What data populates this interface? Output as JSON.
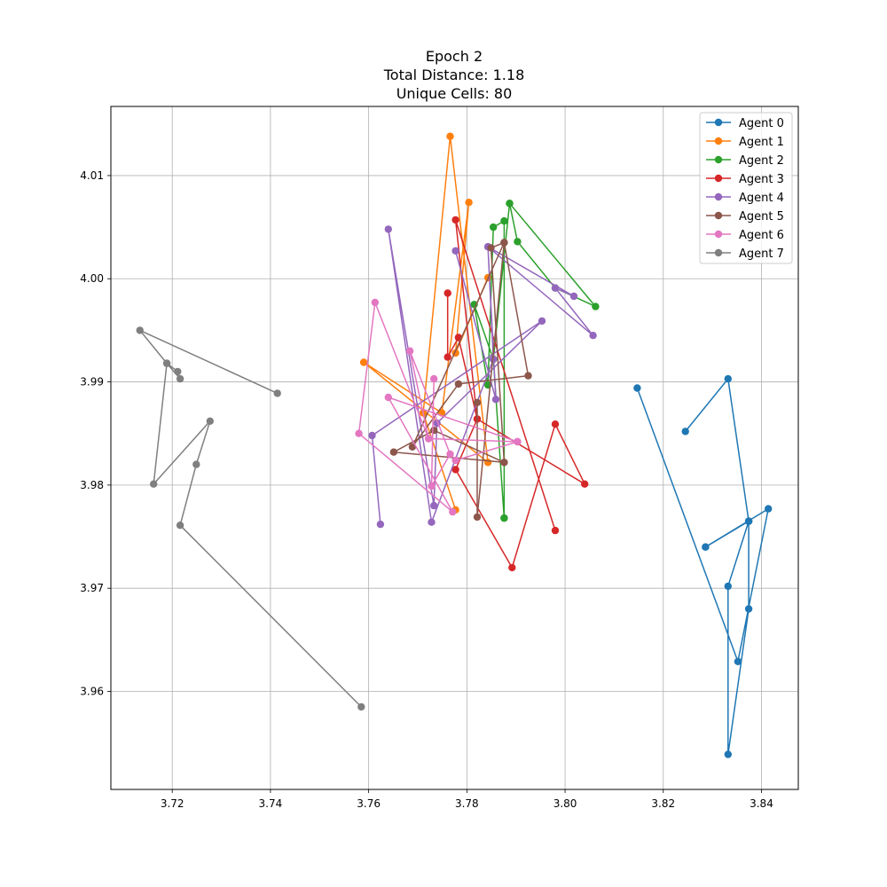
{
  "chart_data": {
    "type": "line",
    "title_lines": [
      "Epoch 2",
      "Total Distance: 1.18",
      "Unique Cells: 80"
    ],
    "xlabel": "",
    "ylabel": "",
    "xlim": [
      3.7075,
      3.8475
    ],
    "ylim": [
      3.9505,
      4.0167
    ],
    "x_ticks": [
      3.72,
      3.74,
      3.76,
      3.78,
      3.8,
      3.82,
      3.84
    ],
    "x_tick_labels": [
      "3.72",
      "3.74",
      "3.76",
      "3.78",
      "3.80",
      "3.82",
      "3.84"
    ],
    "y_ticks": [
      3.96,
      3.97,
      3.98,
      3.99,
      4.0,
      4.01
    ],
    "y_tick_labels": [
      "3.96",
      "3.97",
      "3.98",
      "3.99",
      "4.00",
      "4.01"
    ],
    "grid": true,
    "legend_position": "top-right",
    "series": [
      {
        "name": "Agent 0",
        "color": "#1f77b4",
        "points": [
          [
            3.8147,
            3.9894
          ],
          [
            3.8352,
            3.9629
          ],
          [
            3.8414,
            3.9777
          ],
          [
            3.8286,
            3.974
          ],
          [
            3.8374,
            3.9765
          ],
          [
            3.8374,
            3.968
          ],
          [
            3.8332,
            3.9539
          ],
          [
            3.8332,
            3.9702
          ],
          [
            3.8374,
            3.9765
          ],
          [
            3.8286,
            3.974
          ],
          [
            3.8374,
            3.9765
          ],
          [
            3.8332,
            3.9903
          ],
          [
            3.8245,
            3.9852
          ]
        ]
      },
      {
        "name": "Agent 1",
        "color": "#ff7f0e",
        "points": [
          [
            3.7777,
            3.9776
          ],
          [
            3.7711,
            3.987
          ],
          [
            3.7766,
            4.0138
          ],
          [
            3.7843,
            3.9822
          ],
          [
            3.759,
            3.9919
          ],
          [
            3.7749,
            3.987
          ],
          [
            3.7804,
            4.0074
          ],
          [
            3.7777,
            3.9928
          ],
          [
            3.7843,
            4.0001
          ]
        ]
      },
      {
        "name": "Agent 2",
        "color": "#2ca02c",
        "points": [
          [
            3.7876,
            3.9768
          ],
          [
            3.7876,
            4.0056
          ],
          [
            3.7854,
            4.005
          ],
          [
            3.7843,
            3.9897
          ],
          [
            3.7815,
            3.9975
          ],
          [
            3.7854,
            3.9922
          ],
          [
            3.7887,
            4.0073
          ],
          [
            3.7903,
            4.0036
          ],
          [
            3.798,
            3.9991
          ],
          [
            3.8062,
            3.9973
          ],
          [
            3.7887,
            4.0073
          ],
          [
            3.7854,
            3.9922
          ],
          [
            3.7876,
            3.9768
          ]
        ]
      },
      {
        "name": "Agent 3",
        "color": "#d62728",
        "points": [
          [
            3.7761,
            3.9986
          ],
          [
            3.7761,
            3.9924
          ],
          [
            3.7783,
            3.9943
          ],
          [
            3.7821,
            3.9864
          ],
          [
            3.7777,
            3.9815
          ],
          [
            3.7892,
            3.972
          ],
          [
            3.798,
            3.9859
          ],
          [
            3.804,
            3.9801
          ],
          [
            3.7821,
            3.9864
          ],
          [
            3.7777,
            4.0057
          ],
          [
            3.798,
            3.9756
          ]
        ]
      },
      {
        "name": "Agent 4",
        "color": "#9467bd",
        "points": [
          [
            3.7777,
            4.0027
          ],
          [
            3.7859,
            3.9883
          ],
          [
            3.7843,
            4.0031
          ],
          [
            3.8018,
            3.9983
          ],
          [
            3.798,
            3.9991
          ],
          [
            3.8057,
            3.9945
          ],
          [
            3.7843,
            4.0031
          ],
          [
            3.7854,
            3.9922
          ],
          [
            3.7728,
            3.9764
          ],
          [
            3.764,
            4.0048
          ],
          [
            3.7733,
            3.978
          ],
          [
            3.7739,
            3.986
          ],
          [
            3.7953,
            3.9959
          ],
          [
            3.7607,
            3.9848
          ],
          [
            3.7624,
            3.9762
          ]
        ]
      },
      {
        "name": "Agent 5",
        "color": "#8c564b",
        "points": [
          [
            3.7821,
            3.988
          ],
          [
            3.7821,
            3.9769
          ],
          [
            3.7876,
            4.0035
          ],
          [
            3.7925,
            3.9906
          ],
          [
            3.7783,
            3.9898
          ],
          [
            3.7689,
            3.9837
          ],
          [
            3.7876,
            4.0035
          ],
          [
            3.7849,
            4.003
          ],
          [
            3.7876,
            3.9822
          ],
          [
            3.7733,
            3.9853
          ],
          [
            3.7651,
            3.9832
          ],
          [
            3.7876,
            3.9822
          ]
        ]
      },
      {
        "name": "Agent 6",
        "color": "#e377c2",
        "points": [
          [
            3.7733,
            3.9903
          ],
          [
            3.7728,
            3.9799
          ],
          [
            3.7766,
            3.983
          ],
          [
            3.7684,
            3.993
          ],
          [
            3.7722,
            3.9845
          ],
          [
            3.7903,
            3.9842
          ],
          [
            3.764,
            3.9885
          ],
          [
            3.7771,
            3.9774
          ],
          [
            3.758,
            3.985
          ],
          [
            3.7613,
            3.9977
          ],
          [
            3.7722,
            3.9845
          ],
          [
            3.7903,
            3.9842
          ],
          [
            3.7777,
            3.9824
          ]
        ]
      },
      {
        "name": "Agent 7",
        "color": "#7f7f7f",
        "points": [
          [
            3.7414,
            3.9889
          ],
          [
            3.7134,
            3.995
          ],
          [
            3.7189,
            3.9918
          ],
          [
            3.7211,
            3.991
          ],
          [
            3.7216,
            3.9903
          ],
          [
            3.7189,
            3.9918
          ],
          [
            3.7162,
            3.9801
          ],
          [
            3.7277,
            3.9862
          ],
          [
            3.7249,
            3.982
          ],
          [
            3.7216,
            3.9761
          ],
          [
            3.7585,
            3.9585
          ]
        ]
      }
    ]
  }
}
